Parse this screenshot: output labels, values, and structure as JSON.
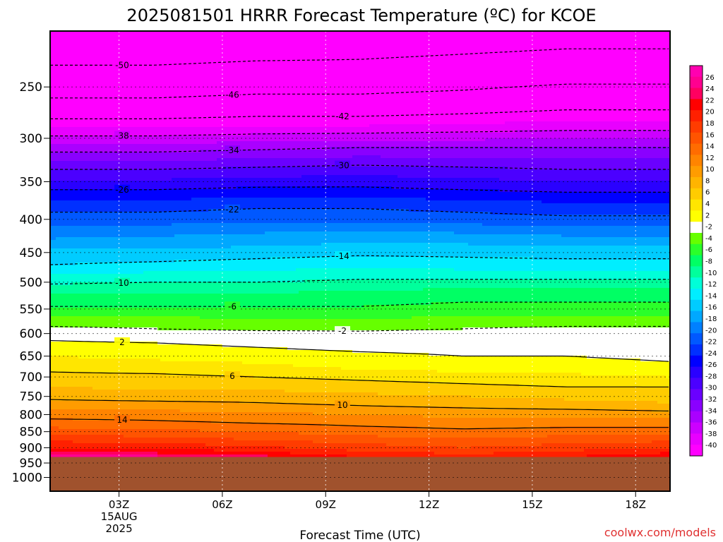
{
  "title": "2025081501 HRRR Forecast Temperature (ºC) for KCOE",
  "xlabel": "Forecast Time (UTC)",
  "credit": "coolwx.com/models",
  "chart_data": {
    "type": "heatmap",
    "title": "2025081501 HRRR Forecast Temperature (ºC) for KCOE",
    "xlabel": "Forecast Time (UTC)",
    "ylabel": "",
    "x_ticks": [
      {
        "hour": 3,
        "label": "03Z",
        "sub": [
          "15AUG",
          "2025"
        ]
      },
      {
        "hour": 6,
        "label": "06Z",
        "sub": []
      },
      {
        "hour": 9,
        "label": "09Z",
        "sub": []
      },
      {
        "hour": 12,
        "label": "12Z",
        "sub": []
      },
      {
        "hour": 15,
        "label": "15Z",
        "sub": []
      },
      {
        "hour": 18,
        "label": "18Z",
        "sub": []
      }
    ],
    "xlim": [
      1,
      19
    ],
    "y_ticks": [
      250,
      300,
      350,
      400,
      450,
      500,
      550,
      600,
      650,
      700,
      750,
      800,
      850,
      900,
      950,
      1000
    ],
    "ylim_hPa": [
      1050,
      205
    ],
    "log_pressure_axis": true,
    "grid": true,
    "surface_pressure_hPa": 930,
    "colorbar": {
      "min": -42,
      "max": 28,
      "step": 2,
      "gap_at_zero": true,
      "tick_labels": [
        "26",
        "24",
        "22",
        "20",
        "18",
        "16",
        "14",
        "12",
        "10",
        "8",
        "6",
        "4",
        "2",
        "-2",
        "-4",
        "-6",
        "-8",
        "-10",
        "-12",
        "-14",
        "-16",
        "-18",
        "-20",
        "-22",
        "-24",
        "-26",
        "-28",
        "-30",
        "-32",
        "-34",
        "-36",
        "-38",
        "-40"
      ]
    },
    "temperature_profile": {
      "levels_hPa": [
        210,
        235,
        260,
        285,
        310,
        335,
        360,
        380,
        400,
        420,
        445,
        470,
        495,
        520,
        545,
        570,
        590,
        605,
        620,
        650,
        675,
        700,
        725,
        750,
        775,
        800,
        825,
        850,
        875,
        900,
        920,
        930
      ],
      "times": [
        1,
        4,
        7,
        10,
        13,
        16,
        19
      ],
      "temps_C": [
        [
          -53,
          -53,
          -52.5,
          -52,
          -51.5,
          -51,
          -51
        ],
        [
          -49.5,
          -49.5,
          -49,
          -49,
          -48.5,
          -48,
          -48
        ],
        [
          -46,
          -46,
          -45.5,
          -45.5,
          -45,
          -44,
          -44
        ],
        [
          -41,
          -41,
          -40.5,
          -40.5,
          -40,
          -39.5,
          -39.5
        ],
        [
          -35,
          -35,
          -34.5,
          -34,
          -34,
          -34,
          -34
        ],
        [
          -30,
          -30,
          -29.5,
          -29,
          -29.5,
          -30,
          -30
        ],
        [
          -26,
          -26,
          -25.5,
          -25.5,
          -26,
          -26.5,
          -26.5
        ],
        [
          -23,
          -23,
          -22.5,
          -22.5,
          -23,
          -23.5,
          -23.5
        ],
        [
          -21,
          -21,
          -20.5,
          -20.5,
          -21,
          -21.5,
          -21.5
        ],
        [
          -19,
          -18.5,
          -18,
          -17.5,
          -18,
          -18.5,
          -18.5
        ],
        [
          -16,
          -16,
          -15.5,
          -15,
          -15,
          -15.5,
          -15.5
        ],
        [
          -14,
          -13.5,
          -13,
          -12.5,
          -13,
          -13,
          -13
        ],
        [
          -11,
          -10.5,
          -10.5,
          -10,
          -10,
          -10,
          -10
        ],
        [
          -8,
          -8,
          -8,
          -7.5,
          -7,
          -7,
          -7
        ],
        [
          -6,
          -6,
          -6,
          -6,
          -5.5,
          -5.5,
          -5.5
        ],
        [
          -3.5,
          -3.5,
          -4,
          -4,
          -3.5,
          -3.5,
          -3.5
        ],
        [
          -1.5,
          -2,
          -2.5,
          -2.5,
          -2,
          -1.5,
          -1.5
        ],
        [
          1,
          0,
          -0.5,
          -1,
          -0.5,
          -0.5,
          -0.5
        ],
        [
          2.5,
          2,
          1.5,
          1,
          1,
          1,
          0.5
        ],
        [
          4,
          3.5,
          3,
          2.5,
          2,
          2,
          1.5
        ],
        [
          5.5,
          5,
          4.5,
          3.5,
          3,
          3,
          2.5
        ],
        [
          6.5,
          6.5,
          6,
          5.5,
          5,
          4.5,
          4
        ],
        [
          8,
          7.5,
          7.5,
          7,
          6.5,
          6,
          6
        ],
        [
          9.5,
          9,
          9,
          8.5,
          8,
          7.5,
          7
        ],
        [
          11,
          11,
          10.5,
          10,
          9.5,
          9,
          8.5
        ],
        [
          13,
          13,
          12.5,
          12,
          11.5,
          11.5,
          11
        ],
        [
          15,
          14.5,
          14,
          13.5,
          13,
          13,
          13
        ],
        [
          17,
          16.5,
          16,
          15,
          14.5,
          15,
          15
        ],
        [
          19.5,
          19,
          18,
          17,
          16.5,
          17,
          17.5
        ],
        [
          22,
          21.5,
          20.5,
          19,
          18,
          19,
          20
        ],
        [
          25,
          24.5,
          23,
          21,
          20,
          21,
          22.5
        ],
        [
          27,
          27,
          25,
          22,
          21,
          22,
          24
        ]
      ]
    },
    "contour_labels": [
      {
        "value": -50,
        "label": "-50"
      },
      {
        "value": -46,
        "label": "-46"
      },
      {
        "value": -42,
        "label": "-42"
      },
      {
        "value": -38,
        "label": "-38"
      },
      {
        "value": -34,
        "label": "-34"
      },
      {
        "value": -30,
        "label": "-30"
      },
      {
        "value": -26,
        "label": "-26"
      },
      {
        "value": -22,
        "label": "-22"
      },
      {
        "value": -14,
        "label": "-14"
      },
      {
        "value": -10,
        "label": "-10"
      },
      {
        "value": -6,
        "label": "-6"
      },
      {
        "value": -2,
        "label": "-2"
      },
      {
        "value": 2,
        "label": "2"
      },
      {
        "value": 6,
        "label": "6"
      },
      {
        "value": 10,
        "label": "10"
      },
      {
        "value": 14,
        "label": "14"
      }
    ]
  }
}
